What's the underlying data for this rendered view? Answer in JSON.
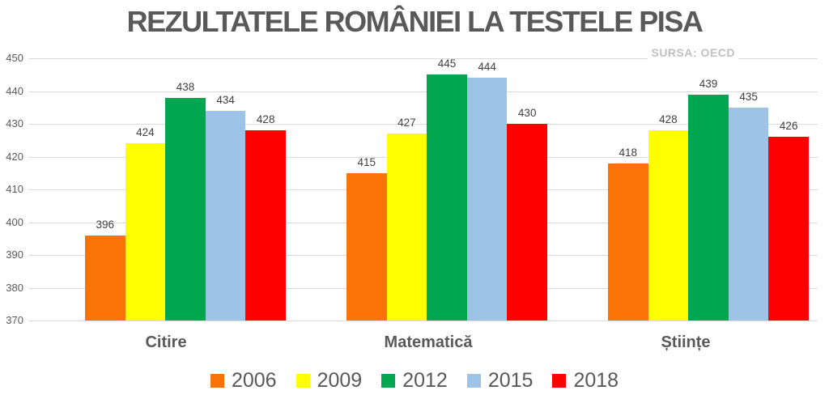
{
  "chart": {
    "title": "REZULTATELE ROMÂNIEI LA TESTELE PISA",
    "source": "SURSA: OECD"
  },
  "chart_data": {
    "type": "bar",
    "title": "REZULTATELE ROMÂNIEI LA TESTELE PISA",
    "source_note": "SURSA: OECD",
    "categories": [
      "Citire",
      "Matematică",
      "Științe"
    ],
    "series": [
      {
        "name": "2006",
        "color": "#FA7306",
        "values": [
          396,
          415,
          418
        ]
      },
      {
        "name": "2009",
        "color": "#FFFF00",
        "values": [
          424,
          427,
          428
        ]
      },
      {
        "name": "2012",
        "color": "#00A650",
        "values": [
          438,
          445,
          439
        ]
      },
      {
        "name": "2015",
        "color": "#9DC3E6",
        "values": [
          434,
          444,
          435
        ]
      },
      {
        "name": "2018",
        "color": "#FE0000",
        "values": [
          428,
          430,
          426
        ]
      }
    ],
    "ylim": [
      370,
      450
    ],
    "ytick_step": 10,
    "yticks": [
      370,
      380,
      390,
      400,
      410,
      420,
      430,
      440,
      450
    ],
    "grid": true,
    "legend_position": "bottom",
    "colors": {
      "title_text": "#595959",
      "source_text": "#BFBFBF",
      "axis_text": "#595959",
      "value_label_text": "#404040",
      "gridline": "#DADADA",
      "background": "#FFFFFF"
    }
  }
}
